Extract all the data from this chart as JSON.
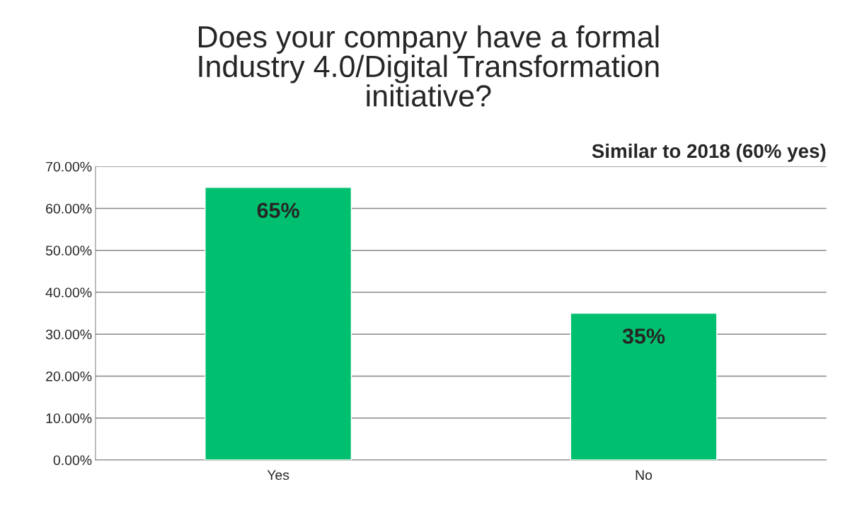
{
  "chart_data": {
    "type": "bar",
    "title": "Does your company have a formal\nIndustry 4.0/Digital Transformation\ninitiative?",
    "annotations": [
      "Similar to 2018 (60% yes)"
    ],
    "categories": [
      "Yes",
      "No"
    ],
    "values": [
      65,
      35
    ],
    "color": "#00c06f",
    "value_labels": [
      "65%",
      "35%"
    ],
    "ylim": [
      0,
      70
    ],
    "yticks": [
      {
        "value": 0,
        "label": "0.00%"
      },
      {
        "value": 10,
        "label": "10.00%"
      },
      {
        "value": 20,
        "label": "20.00%"
      },
      {
        "value": 30,
        "label": "30.00%"
      },
      {
        "value": 40,
        "label": "40.00%"
      },
      {
        "value": 50,
        "label": "50.00%"
      },
      {
        "value": 60,
        "label": "60.00%"
      },
      {
        "value": 70,
        "label": "70.00%"
      }
    ],
    "grid": "y",
    "legend": false
  }
}
